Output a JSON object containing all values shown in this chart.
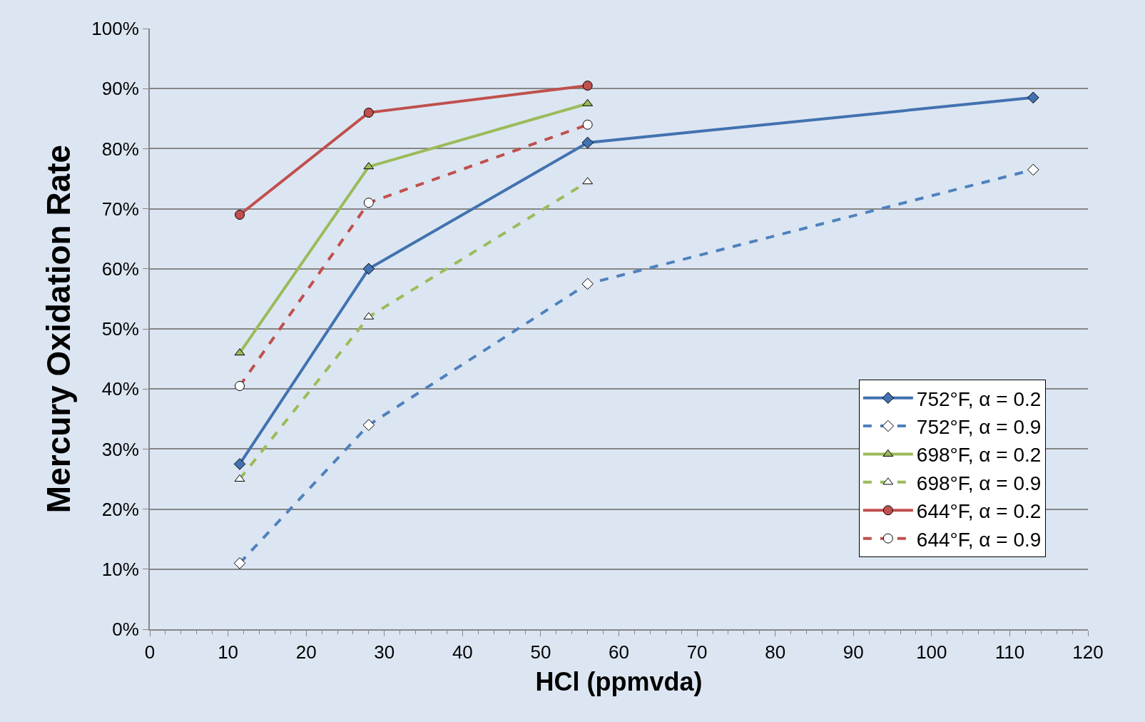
{
  "chart_data": {
    "type": "line",
    "xlabel": "HCl (ppmvda)",
    "ylabel": "Mercury Oxidation Rate",
    "x": [
      11.5,
      28,
      56,
      113
    ],
    "series": [
      {
        "name": "752°F, α = 0.2",
        "color": "#4272b0",
        "marker": "diamond",
        "line_style": "solid",
        "values": [
          27.5,
          60,
          81,
          88.5
        ]
      },
      {
        "name": "752°F, α = 0.9",
        "color": "#4f81bd",
        "marker": "diamond",
        "line_style": "dashed",
        "values": [
          11,
          34,
          57.5,
          76.5
        ]
      },
      {
        "name": "698°F, α = 0.2",
        "color": "#9bbb59",
        "marker": "triangle",
        "line_style": "solid",
        "values": [
          46,
          77,
          87.5,
          null
        ]
      },
      {
        "name": "698°F, α = 0.9",
        "color": "#9bbb59",
        "marker": "triangle",
        "line_style": "dashed",
        "values": [
          25,
          52,
          74.5,
          null
        ]
      },
      {
        "name": "644°F, α = 0.2",
        "color": "#c0504d",
        "marker": "circle",
        "line_style": "solid",
        "values": [
          69,
          86,
          90.5,
          null
        ]
      },
      {
        "name": "644°F, α = 0.9",
        "color": "#c0504d",
        "marker": "circle",
        "line_style": "dashed",
        "values": [
          40.5,
          71,
          84,
          null
        ]
      }
    ],
    "xlim": [
      0,
      120
    ],
    "xticks": [
      0,
      10,
      20,
      30,
      40,
      50,
      60,
      70,
      80,
      90,
      100,
      110,
      120
    ],
    "ylim": [
      0,
      100
    ],
    "yticks": [
      {
        "value": 0,
        "label": "0%"
      },
      {
        "value": 10,
        "label": "10%"
      },
      {
        "value": 20,
        "label": "20%"
      },
      {
        "value": 30,
        "label": "30%"
      },
      {
        "value": 40,
        "label": "40%"
      },
      {
        "value": 50,
        "label": "50%"
      },
      {
        "value": 60,
        "label": "60%"
      },
      {
        "value": 70,
        "label": "70%"
      },
      {
        "value": 80,
        "label": "80%"
      },
      {
        "value": 90,
        "label": "90%"
      },
      {
        "value": 100,
        "label": "100%"
      }
    ],
    "grid": "y",
    "legend": "bottom right"
  }
}
